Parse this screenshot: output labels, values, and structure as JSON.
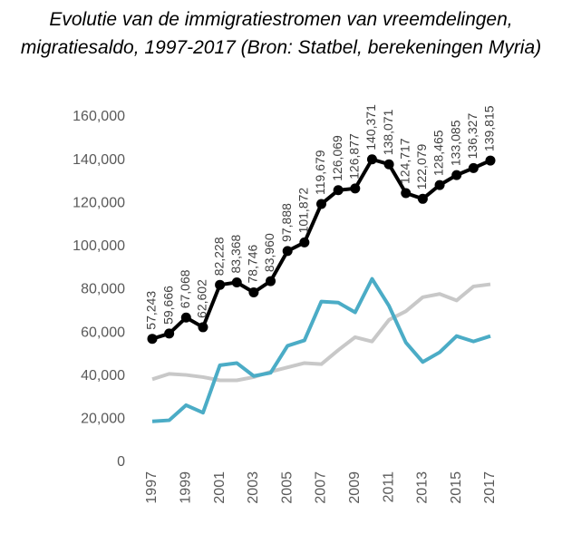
{
  "chart_data": {
    "type": "line",
    "title": "Evolutie van de immigratiestromen van vreemdelingen, migratiesaldo, 1997-2017 (Bron: Statbel, berekeningen Myria)",
    "categories": [
      "1997",
      null,
      "1999",
      null,
      "2001",
      null,
      "2003",
      null,
      "2005",
      null,
      "2007",
      null,
      "2009",
      null,
      "2011",
      null,
      "2013",
      null,
      "2015",
      null,
      "2017"
    ],
    "series": [
      {
        "color": "#000000",
        "values": [
          57243,
          59666,
          67068,
          62602,
          82228,
          83368,
          78746,
          83960,
          97888,
          101872,
          119679,
          126069,
          126877,
          140371,
          138071,
          124717,
          122079,
          128465,
          133085,
          136327,
          139815
        ],
        "value_labels": [
          "57,243",
          "59,666",
          "67,068",
          "62,602",
          "82,228",
          "83,368",
          "78,746",
          "83,960",
          "97,888",
          "101,872",
          "119,679",
          "126,069",
          "126,877",
          "140,371",
          "138,071",
          "124,717",
          "122,079",
          "128,465",
          "133,085",
          "136,327",
          "139,815"
        ]
      },
      {
        "color": "#4bacc6",
        "values": [
          19000,
          19500,
          26500,
          23000,
          45000,
          46000,
          40000,
          41500,
          54000,
          56500,
          74500,
          74000,
          69500,
          85000,
          72500,
          55500,
          46500,
          51000,
          58500,
          56000,
          58500
        ]
      },
      {
        "color": "#c8c8c8",
        "values": [
          38500,
          41000,
          40500,
          39500,
          38000,
          38000,
          39500,
          42000,
          44000,
          46000,
          45500,
          52000,
          58000,
          56000,
          66000,
          70000,
          76500,
          78000,
          75000,
          81500,
          82500
        ]
      }
    ],
    "ylim": [
      0,
      160000
    ],
    "yticks": [
      0,
      {
        "value": 20000,
        "label": "20,000"
      },
      {
        "value": 40000,
        "label": "40,000"
      },
      {
        "value": 60000,
        "label": "60,000"
      },
      {
        "value": 80000,
        "label": "80,000"
      },
      {
        "value": 100000,
        "label": "100,000"
      },
      {
        "value": 120000,
        "label": "120,000"
      },
      {
        "value": 140000,
        "label": "140,000"
      },
      {
        "value": 160000,
        "label": "160,000"
      }
    ],
    "grid": false
  }
}
